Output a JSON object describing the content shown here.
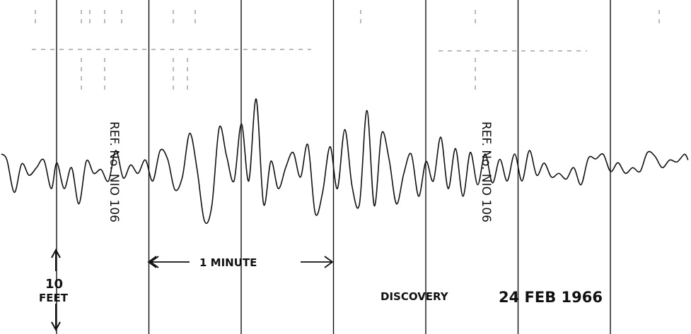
{
  "chart_data": {
    "type": "line",
    "title": "",
    "xlabel": "",
    "ylabel": "",
    "x_unit": "minutes",
    "y_unit": "feet",
    "xlim": [
      0,
      3.75
    ],
    "ylim": [
      -20,
      20
    ],
    "minute_marks": [
      0,
      0.5,
      1,
      1.5,
      2,
      2.5,
      3,
      3.5
    ],
    "series": [
      {
        "x": [
          0,
          0.03,
          0.07,
          0.11,
          0.15,
          0.19,
          0.23,
          0.27,
          0.3,
          0.34,
          0.38,
          0.42,
          0.46,
          0.5,
          0.54,
          0.58,
          0.62,
          0.66,
          0.7,
          0.74,
          0.78,
          0.82,
          0.86,
          0.9,
          0.94,
          0.98,
          1.02,
          1.06,
          1.1,
          1.14,
          1.18,
          1.22,
          1.26,
          1.3,
          1.34,
          1.38,
          1.42,
          1.46,
          1.5,
          1.54,
          1.58,
          1.62,
          1.66,
          1.7,
          1.74,
          1.78,
          1.82,
          1.86,
          1.9,
          1.94,
          1.98,
          2.02,
          2.06,
          2.1,
          2.14,
          2.18,
          2.22,
          2.26,
          2.3,
          2.34,
          2.38,
          2.42,
          2.46,
          2.5,
          2.54,
          2.58,
          2.62,
          2.66,
          2.7,
          2.74,
          2.78,
          2.82,
          2.86,
          2.9,
          2.94,
          2.98,
          3.02,
          3.06,
          3.1,
          3.14,
          3.18,
          3.22,
          3.26,
          3.3,
          3.34,
          3.38,
          3.42,
          3.46,
          3.5,
          3.54,
          3.58,
          3.62,
          3.66,
          3.7,
          3.72
        ],
        "y": [
          2.6,
          1.0,
          -7.5,
          0,
          -3,
          -1,
          1.0,
          -6.5,
          0.3,
          -6.5,
          -1.0,
          -10.5,
          0.7,
          -2.5,
          -1.5,
          -4.5,
          3.5,
          -3.7,
          -0.3,
          -2.5,
          1.0,
          -4.5,
          3.5,
          1.3,
          -6.8,
          -3.5,
          8.0,
          -1.5,
          -15.0,
          -11.0,
          9.5,
          2.0,
          -4.5,
          10.5,
          -4.5,
          17.0,
          -10.5,
          0.7,
          -6.5,
          -1.0,
          3.0,
          -3.5,
          5.0,
          -13.0,
          -7.5,
          4.5,
          -6.5,
          9.0,
          -6.0,
          -10.5,
          14.0,
          -11.0,
          8.0,
          1.2,
          -10.5,
          -2.5,
          2.6,
          -8.5,
          0.6,
          -4.5,
          7.0,
          -6.5,
          4.0,
          -8.5,
          3.0,
          -5.5,
          2.6,
          -5.0,
          1.2,
          -4.5,
          2.6,
          -4.5,
          3.5,
          -3.0,
          0.2,
          -3.5,
          -2.5,
          -4.0,
          -1.0,
          -5.5,
          1.5,
          1.3,
          2.5,
          -2.0,
          0.3,
          -2.5,
          -1.0,
          -2.0,
          3.0,
          2.0,
          -1.0,
          1.0,
          0.5,
          2.5,
          1.0
        ]
      }
    ],
    "annotations": {
      "ref_left": "REF. No. NIO 106",
      "ref_right": "REF. No. NIO 106",
      "minute_label": "1 MINUTE",
      "scale_value": "10",
      "scale_unit": "FEET",
      "vessel": "DISCOVERY",
      "date": "24 FEB 1966"
    }
  },
  "style": {
    "ink": "#111111",
    "paper": "#ffffff",
    "faint_ink": "#777777"
  }
}
